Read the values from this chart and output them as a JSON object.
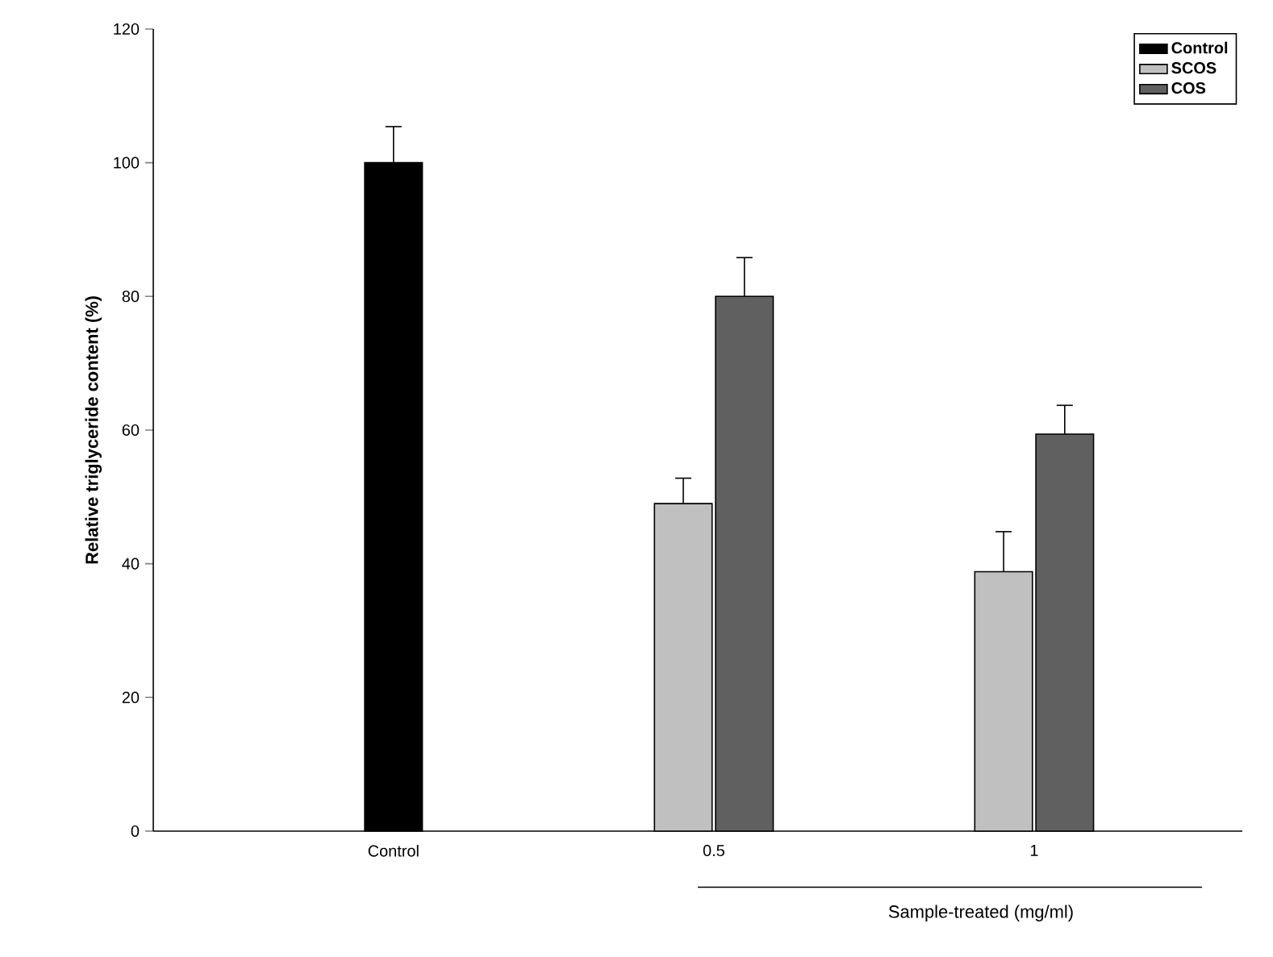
{
  "chart_data": {
    "type": "bar",
    "xlabel": "Sample-treated (mg/ml)",
    "ylabel": "Relative triglyceride content (%)",
    "categories": [
      "Control",
      "0.5",
      "1"
    ],
    "series": [
      {
        "name": "Control",
        "color": "#000000",
        "values": [
          100,
          null,
          null
        ],
        "errors": [
          5.4,
          null,
          null
        ]
      },
      {
        "name": "SCOS",
        "color": "#c0c0c0",
        "values": [
          null,
          49,
          38.8
        ],
        "errors": [
          null,
          3.8,
          6
        ]
      },
      {
        "name": "COS",
        "color": "#606060",
        "values": [
          null,
          80,
          59.4
        ],
        "errors": [
          null,
          5.8,
          4.3
        ]
      }
    ],
    "ylim": [
      0,
      120
    ],
    "yticks": [
      0,
      20,
      40,
      60,
      80,
      100,
      120
    ],
    "legend": "top right"
  }
}
